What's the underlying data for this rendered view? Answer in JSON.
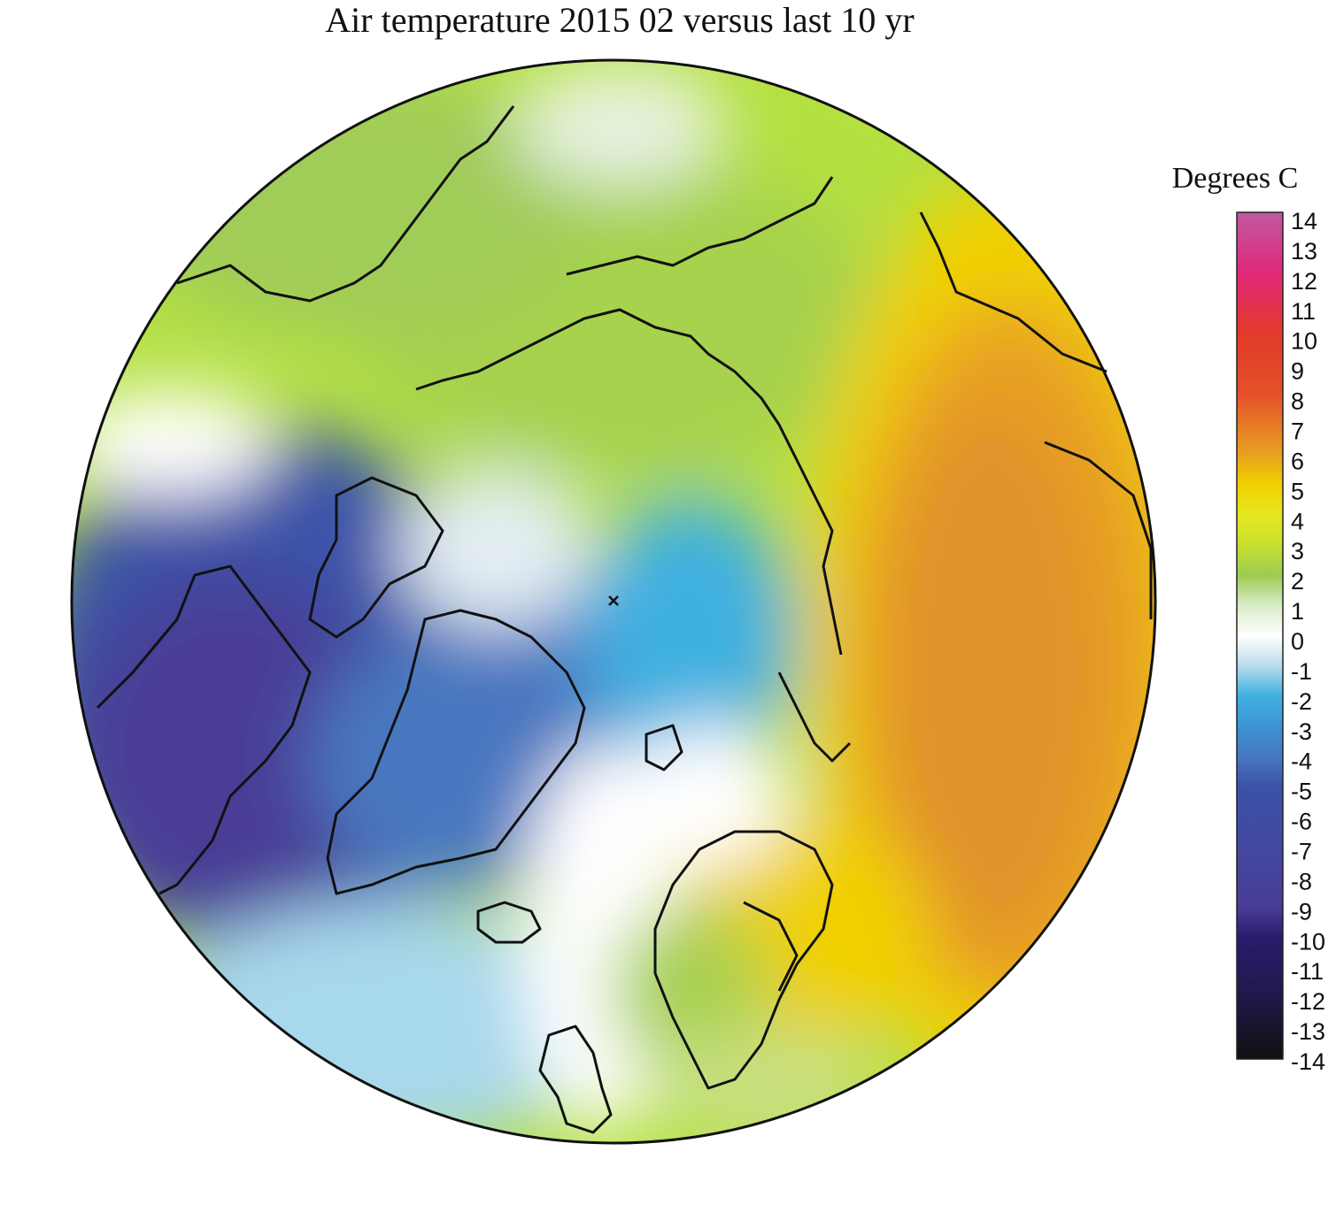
{
  "title": "Air temperature 2015 02 versus last 10 yr",
  "legend": {
    "title": "Degrees C",
    "ticks": [
      "14",
      "13",
      "12",
      "11",
      "10",
      "9",
      "8",
      "7",
      "6",
      "5",
      "4",
      "3",
      "2",
      "1",
      "0",
      "-1",
      "-2",
      "-3",
      "-4",
      "-5",
      "-6",
      "-7",
      "-8",
      "-9",
      "-10",
      "-11",
      "-12",
      "-13",
      "-14"
    ],
    "range": [
      -14,
      14
    ],
    "stops": [
      {
        "value": 14,
        "color": "#c05aa0"
      },
      {
        "value": 12,
        "color": "#e0287a"
      },
      {
        "value": 10,
        "color": "#e23a2a"
      },
      {
        "value": 8,
        "color": "#e4502a"
      },
      {
        "value": 6,
        "color": "#e8a020"
      },
      {
        "value": 5,
        "color": "#f0d000"
      },
      {
        "value": 4,
        "color": "#e6e820"
      },
      {
        "value": 3,
        "color": "#c8e030"
      },
      {
        "value": 2,
        "color": "#9ccc50"
      },
      {
        "value": 1,
        "color": "#d8ecc8"
      },
      {
        "value": 0,
        "color": "#ffffff"
      },
      {
        "value": -1,
        "color": "#b8dcec"
      },
      {
        "value": -2,
        "color": "#40b0e0"
      },
      {
        "value": -3,
        "color": "#3c94d4"
      },
      {
        "value": -4,
        "color": "#4878c0"
      },
      {
        "value": -5,
        "color": "#3a52a8"
      },
      {
        "value": -7,
        "color": "#4448a0"
      },
      {
        "value": -9,
        "color": "#483c96"
      },
      {
        "value": -10,
        "color": "#2a1c6c"
      },
      {
        "value": -12,
        "color": "#201848"
      },
      {
        "value": -14,
        "color": "#101010"
      }
    ]
  },
  "map": {
    "projection": "north polar stereographic",
    "pole_marker": "x-icon"
  }
}
